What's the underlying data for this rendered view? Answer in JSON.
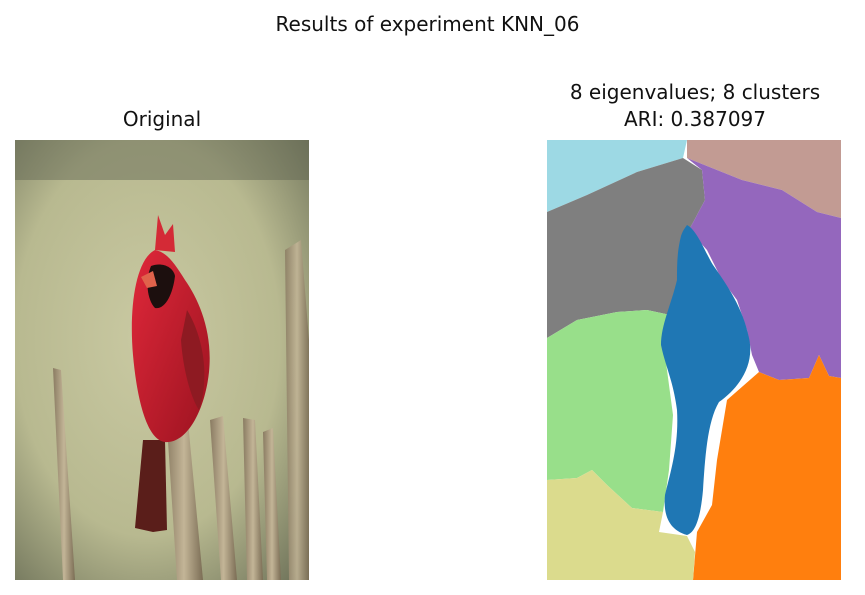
{
  "figure": {
    "suptitle": "Results of experiment KNN_06"
  },
  "left_panel": {
    "title": "Original"
  },
  "right_panel": {
    "title_line1": "8 eigenvalues; 8 clusters",
    "title_line2": "ARI: 0.387097"
  },
  "colors": {
    "cluster_light_blue": "#9dd9e4",
    "cluster_rose": "#c29b93",
    "cluster_gray": "#7f7f7f",
    "cluster_purple": "#9467bd",
    "cluster_blue": "#1f77b4",
    "cluster_green": "#98df8a",
    "cluster_orange": "#ff7f0e",
    "cluster_khaki": "#dbdb8d",
    "cardinal_red": "#c41e2c"
  }
}
